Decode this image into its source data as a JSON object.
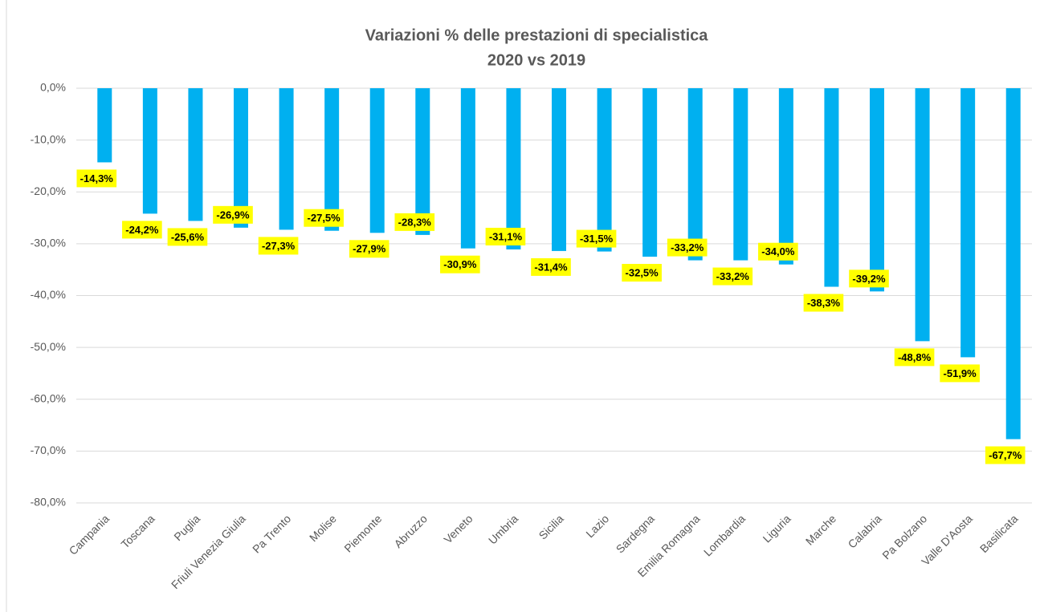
{
  "chart_data": {
    "type": "bar",
    "title": [
      "Variazioni % delle prestazioni di specialistica",
      "2020 vs 2019"
    ],
    "categories": [
      "Campania",
      "Toscana",
      "Puglia",
      "Friuli Venezia Giulia",
      "Pa Trento",
      "Molise",
      "Piemonte",
      "Abruzzo",
      "Veneto",
      "Umbria",
      "Sicilia",
      "Lazio",
      "Sardegna",
      "Emilia Romagna",
      "Lombardia",
      "Liguria",
      "Marche",
      "Calabria",
      "Pa Bolzano",
      "Valle D'Aosta",
      "Basilicata"
    ],
    "values": [
      -14.3,
      -24.2,
      -25.6,
      -26.9,
      -27.3,
      -27.5,
      -27.9,
      -28.3,
      -30.9,
      -31.1,
      -31.4,
      -31.5,
      -32.5,
      -33.2,
      -33.2,
      -34.0,
      -38.3,
      -39.2,
      -48.8,
      -51.9,
      -67.7
    ],
    "value_labels": [
      "-14,3%",
      "-24,2%",
      "-25,6%",
      "-26,9%",
      "-27,3%",
      "-27,5%",
      "-27,9%",
      "-28,3%",
      "-30,9%",
      "-31,1%",
      "-31,4%",
      "-31,5%",
      "-32,5%",
      "-33,2%",
      "-33,2%",
      "-34,0%",
      "-38,3%",
      "-39,2%",
      "-48,8%",
      "-51,9%",
      "-67,7%"
    ],
    "color": "#00b0f0",
    "label_background": "#ffff00",
    "ylim": [
      -80,
      0
    ],
    "yticks": [
      {
        "value": 0,
        "label": "0,0%"
      },
      {
        "value": -10,
        "label": "-10,0%"
      },
      {
        "value": -20,
        "label": "-20,0%"
      },
      {
        "value": -30,
        "label": "-30,0%"
      },
      {
        "value": -40,
        "label": "-40,0%"
      },
      {
        "value": -50,
        "label": "-50,0%"
      },
      {
        "value": -60,
        "label": "-60,0%"
      },
      {
        "value": -70,
        "label": "-70,0%"
      },
      {
        "value": -80,
        "label": "-80,0%"
      }
    ],
    "grid": true
  }
}
